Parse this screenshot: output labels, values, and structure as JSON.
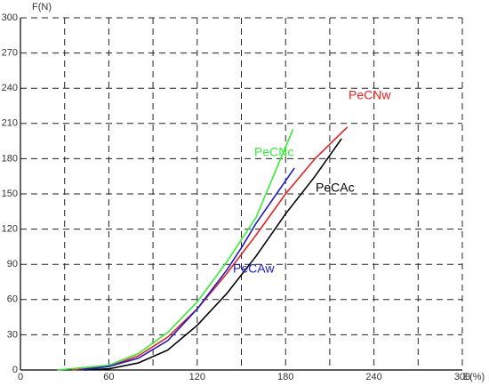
{
  "chart_data": {
    "type": "line",
    "xlabel": "E(%)",
    "ylabel": "F(N)",
    "xlim": [
      0,
      300
    ],
    "ylim": [
      0,
      300
    ],
    "xticks": [
      0,
      60,
      120,
      180,
      240,
      300
    ],
    "xgrid": [
      30,
      90,
      150,
      210,
      270
    ],
    "yticks": [
      0,
      30,
      60,
      90,
      120,
      150,
      180,
      210,
      240,
      270,
      300
    ],
    "grid": true,
    "series": [
      {
        "name": "PeCNw",
        "color": "#e8201e",
        "x": [
          35,
          60,
          80,
          100,
          120,
          140,
          160,
          180,
          200,
          222
        ],
        "values": [
          0,
          3,
          12,
          28,
          52,
          82,
          115,
          150,
          180,
          207
        ]
      },
      {
        "name": "PeCNc",
        "color": "#33ee33",
        "x": [
          25,
          60,
          80,
          100,
          120,
          140,
          160,
          185
        ],
        "values": [
          0,
          4,
          14,
          32,
          58,
          92,
          130,
          205
        ]
      },
      {
        "name": "PeCAc",
        "color": "#000000",
        "x": [
          43,
          60,
          80,
          100,
          120,
          140,
          160,
          180,
          200,
          218
        ],
        "values": [
          0,
          1,
          6,
          17,
          38,
          65,
          97,
          133,
          165,
          197
        ]
      },
      {
        "name": "PeCAw",
        "color": "#1a1acc",
        "x": [
          40,
          60,
          80,
          100,
          120,
          140,
          150,
          160,
          186
        ],
        "values": [
          0,
          3,
          10,
          25,
          52,
          85,
          104,
          125,
          172
        ]
      }
    ]
  }
}
